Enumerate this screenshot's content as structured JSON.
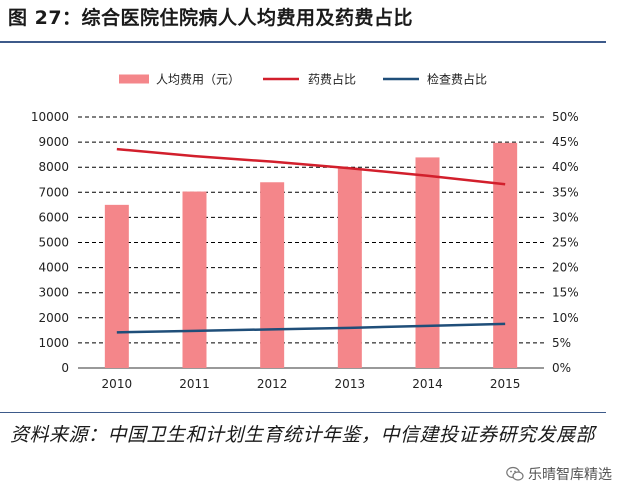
{
  "figure": {
    "title": "图 27：综合医院住院病人人均费用及药费占比",
    "source": "资料来源：中国卫生和计划生育统计年鉴，中信建投证券研究发展部",
    "watermark": "乐晴智库精选",
    "watermark_icon": "wechat-icon"
  },
  "chart_data": {
    "type": "bar",
    "categories": [
      "2010",
      "2011",
      "2012",
      "2013",
      "2014",
      "2015"
    ],
    "series": [
      {
        "name": "人均费用（元）",
        "type": "bar",
        "axis": "left",
        "values": [
          6500,
          7030,
          7400,
          7950,
          8390,
          8970
        ],
        "color": "#f4868a"
      },
      {
        "name": "药费占比",
        "type": "line",
        "axis": "right",
        "values": [
          43.6,
          42.2,
          41.1,
          39.8,
          38.3,
          36.6
        ],
        "color": "#d21f2c"
      },
      {
        "name": "检查费占比",
        "type": "line",
        "axis": "right",
        "values": [
          7.1,
          7.4,
          7.7,
          8.0,
          8.4,
          8.8
        ],
        "color": "#1f4e79"
      }
    ],
    "y_left": {
      "min": 0,
      "max": 10000,
      "step": 1000,
      "ticks": [
        "0",
        "1000",
        "2000",
        "3000",
        "4000",
        "5000",
        "6000",
        "7000",
        "8000",
        "9000",
        "10000"
      ]
    },
    "y_right": {
      "min": 0,
      "max": 50,
      "step": 5,
      "ticks": [
        "0%",
        "5%",
        "10%",
        "15%",
        "20%",
        "25%",
        "30%",
        "35%",
        "40%",
        "45%",
        "50%"
      ]
    },
    "grid": true,
    "gridline_style": "dashed",
    "legend_position": "top"
  }
}
